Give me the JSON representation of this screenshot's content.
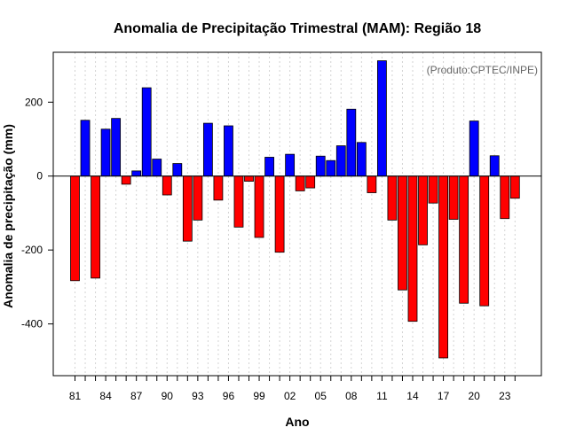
{
  "chart_data": {
    "type": "bar",
    "title": "Anomalia de Precipitação Trimestral (MAM): Região 18",
    "xlabel": "Ano",
    "ylabel": "Anomalia de precipitação (mm)",
    "credit": "(Produto:CPTEC/INPE)",
    "ylim": [
      -540,
      335
    ],
    "y_ticks": [
      -400,
      -200,
      0,
      200
    ],
    "x_tick_labels": [
      "81",
      "84",
      "87",
      "90",
      "93",
      "96",
      "99",
      "02",
      "05",
      "08",
      "11",
      "14",
      "17",
      "20",
      "23"
    ],
    "categories": [
      "1981",
      "1982",
      "1983",
      "1984",
      "1985",
      "1986",
      "1987",
      "1988",
      "1989",
      "1990",
      "1991",
      "1992",
      "1993",
      "1994",
      "1995",
      "1996",
      "1997",
      "1998",
      "1999",
      "2000",
      "2001",
      "2002",
      "2003",
      "2004",
      "2005",
      "2006",
      "2007",
      "2008",
      "2009",
      "2010",
      "2011",
      "2012",
      "2013",
      "2014",
      "2015",
      "2016",
      "2017",
      "2018",
      "2019",
      "2020",
      "2021",
      "2022",
      "2023",
      "2024"
    ],
    "values": [
      -283,
      151,
      -276,
      127,
      156,
      -22,
      14,
      239,
      46,
      -51,
      34,
      -176,
      -119,
      143,
      -65,
      136,
      -138,
      -14,
      -166,
      51,
      -206,
      59,
      -40,
      -32,
      54,
      42,
      82,
      181,
      91,
      -45,
      312,
      -119,
      -308,
      -393,
      -186,
      -73,
      -492,
      -117,
      -344,
      149,
      -351,
      55,
      -115,
      -60
    ],
    "positive_color": "#0000ff",
    "negative_color": "#ff0000",
    "grid": "vertical dotted"
  }
}
